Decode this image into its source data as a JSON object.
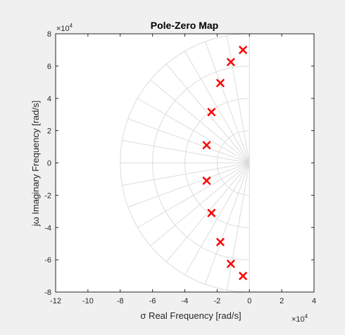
{
  "chart_data": {
    "type": "scatter",
    "title": "Pole-Zero Map",
    "xlabel": "σ Real Frequency [rad/s]",
    "ylabel": "jω Imaginary Frequency [rad/s]",
    "x_exponent_base": "×10",
    "x_exponent_power": "4",
    "y_exponent_base": "×10",
    "y_exponent_power": "4",
    "xlim": [
      -12,
      4
    ],
    "ylim": [
      -8,
      8
    ],
    "xticks": [
      -12,
      -10,
      -8,
      -6,
      -4,
      -2,
      0,
      2,
      4
    ],
    "yticks": [
      -8,
      -6,
      -4,
      -2,
      0,
      2,
      4,
      6,
      8
    ],
    "grid": "s-plane (damping lines and natural-frequency arcs)",
    "grid_radii": [
      2,
      4,
      6,
      8
    ],
    "grid_damping_angles_deg": [
      0,
      10,
      20,
      30,
      40,
      50,
      60,
      70,
      80,
      90
    ],
    "marker": "x",
    "marker_color": "#ff0000",
    "grid_color": "#dcdcdc",
    "poles": [
      {
        "x": -0.4,
        "y": 7.0
      },
      {
        "x": -1.15,
        "y": 6.25
      },
      {
        "x": -1.8,
        "y": 4.95
      },
      {
        "x": -2.35,
        "y": 3.15
      },
      {
        "x": -2.65,
        "y": 1.1
      },
      {
        "x": -2.65,
        "y": -1.1
      },
      {
        "x": -2.35,
        "y": -3.1
      },
      {
        "x": -1.8,
        "y": -4.9
      },
      {
        "x": -1.15,
        "y": -6.25
      },
      {
        "x": -0.4,
        "y": -7.0
      }
    ]
  }
}
